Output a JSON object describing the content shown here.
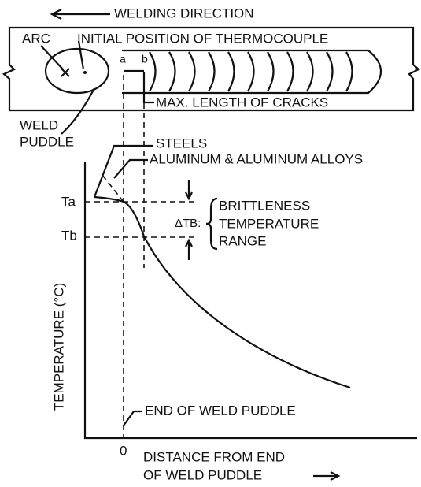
{
  "header": {
    "welding_direction": "WELDING DIRECTION"
  },
  "weld": {
    "arc": "ARC",
    "thermocouple": "INITIAL POSITION OF THERMOCOUPLE",
    "point_a": "a",
    "point_b": "b",
    "cracks": "MAX. LENGTH OF CRACKS",
    "puddle_line1": "WELD",
    "puddle_line2": "PUDDLE"
  },
  "plot": {
    "steels": "STEELS",
    "aluminum": "ALUMINUM & ALUMINUM ALLOYS",
    "ta": "Ta",
    "tb": "Tb",
    "delta_tb": "ΔTB:",
    "range_line1": "BRITTLENESS",
    "range_line2": "TEMPERATURE",
    "range_line3": "RANGE",
    "y_axis": "TEMPERATURE (°C)",
    "end_of_puddle": "END OF WELD PUDDLE",
    "origin": "0",
    "x_axis_line1": "DISTANCE FROM END",
    "x_axis_line2": "OF WELD PUDDLE"
  }
}
